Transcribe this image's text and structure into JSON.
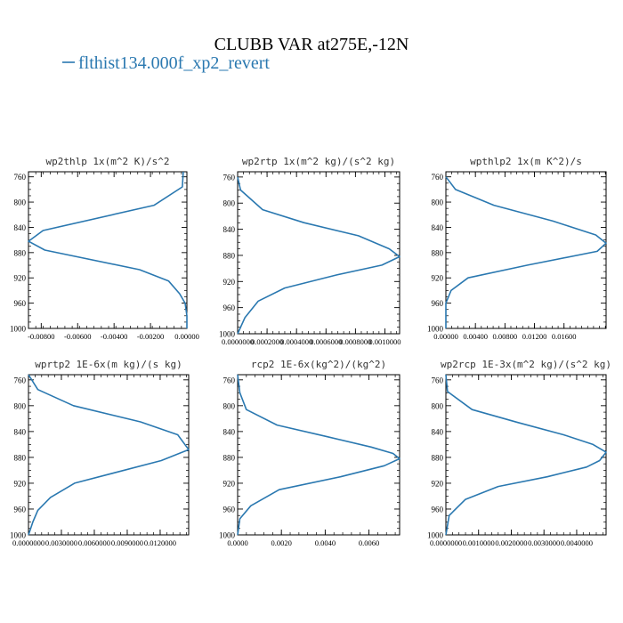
{
  "figure": {
    "title": "CLUBB VAR at275E,-12N",
    "legend_label": "flthist134.000f_xp2_revert",
    "series_color": "#2a78b0"
  },
  "chart_data": [
    {
      "type": "line",
      "title": "wp2thlp  1x(m^2 K)/s^2",
      "xlim": [
        -0.0087,
        0.0
      ],
      "ylim": [
        1000,
        752
      ],
      "y_ticks": [
        760,
        800,
        840,
        880,
        920,
        960,
        1000
      ],
      "x_ticks": [
        -0.008,
        -0.006,
        -0.004,
        -0.002,
        0.0
      ],
      "x_tick_labels": [
        "-0.00800",
        "-0.00600",
        "-0.00400",
        "-0.00200",
        "0.00000"
      ],
      "x": [
        -0.0002,
        -0.00025,
        -0.0018,
        -0.0079,
        -0.0087,
        -0.0078,
        -0.0026,
        -0.001,
        -0.0004,
        -0.0001,
        0.0,
        0.0
      ],
      "y": [
        752,
        776,
        805,
        845,
        862,
        876,
        907,
        925,
        945,
        960,
        980,
        1000
      ]
    },
    {
      "type": "line",
      "title": "wp2rtp  1x(m^2 kg)/(s^2 kg)",
      "xlim": [
        0.0,
        0.0011
      ],
      "ylim": [
        1000,
        752
      ],
      "y_ticks": [
        760,
        800,
        840,
        880,
        920,
        960,
        1000
      ],
      "x_ticks": [
        0.0,
        0.0002,
        0.0004,
        0.0006,
        0.0008,
        0.001
      ],
      "x_tick_labels": [
        "0.0000000",
        "0.0002000",
        "0.0004000",
        "0.0006000",
        "0.0008000",
        "0.0010000"
      ],
      "x": [
        0.0,
        2e-05,
        0.00017,
        0.00045,
        0.00082,
        0.00103,
        0.0011,
        0.00098,
        0.00067,
        0.00032,
        0.00014,
        5e-05,
        0.0
      ],
      "y": [
        760,
        780,
        810,
        830,
        850,
        870,
        882,
        895,
        910,
        930,
        950,
        975,
        1000
      ]
    },
    {
      "type": "line",
      "title": "wpthlp2  1x(m K^2)/s",
      "xlim": [
        0.0,
        0.0217
      ],
      "ylim": [
        1000,
        752
      ],
      "y_ticks": [
        760,
        800,
        840,
        880,
        920,
        960,
        1000
      ],
      "x_ticks": [
        0.0,
        0.004,
        0.008,
        0.012,
        0.016
      ],
      "x_tick_labels": [
        "0.00000",
        "0.00400",
        "0.00800",
        "0.01200",
        "0.01600"
      ],
      "x": [
        0.0,
        0.0013,
        0.0065,
        0.0145,
        0.0203,
        0.0217,
        0.0205,
        0.011,
        0.003,
        0.0007,
        0.0,
        0.0
      ],
      "y": [
        760,
        780,
        805,
        830,
        852,
        865,
        878,
        900,
        920,
        940,
        960,
        1000
      ]
    },
    {
      "type": "line",
      "title": "wprtp2  1E-6x(m kg)/(s kg)",
      "xlim": [
        0.0,
        0.0146
      ],
      "ylim": [
        1000,
        752
      ],
      "y_ticks": [
        760,
        800,
        840,
        880,
        920,
        960,
        1000
      ],
      "x_ticks": [
        0.0,
        0.003,
        0.006,
        0.009,
        0.012
      ],
      "x_tick_labels": [
        "0.0000000",
        "0.0030000",
        "0.0060000",
        "0.0090000",
        "0.0120000"
      ],
      "x": [
        0.0,
        0.00085,
        0.0041,
        0.0102,
        0.0136,
        0.0146,
        0.0121,
        0.0042,
        0.002,
        0.00085,
        0.0004,
        0.0002,
        0.0
      ],
      "y": [
        752,
        775,
        800,
        825,
        845,
        868,
        885,
        920,
        942,
        962,
        980,
        990,
        1000
      ]
    },
    {
      "type": "line",
      "title": "rcp2  1E-6x(kg^2)/(kg^2)",
      "xlim": [
        0.0,
        0.0074
      ],
      "ylim": [
        1000,
        752
      ],
      "y_ticks": [
        760,
        800,
        840,
        880,
        920,
        960,
        1000
      ],
      "x_ticks": [
        0.0,
        0.002,
        0.004,
        0.006
      ],
      "x_tick_labels": [
        "0.0000",
        "0.0020",
        "0.0040",
        "0.0060"
      ],
      "x": [
        0.0,
        0.0001,
        0.0004,
        0.0018,
        0.0041,
        0.0061,
        0.0071,
        0.0074,
        0.0067,
        0.0047,
        0.0019,
        0.0006,
        0.0001,
        0.0
      ],
      "y": [
        752,
        780,
        806,
        830,
        848,
        864,
        874,
        882,
        893,
        910,
        930,
        955,
        975,
        1000
      ]
    },
    {
      "type": "line",
      "title": "wp2rcp  1E-3x(m^2 kg)/(s^2 kg)",
      "xlim": [
        0.0,
        0.0049
      ],
      "ylim": [
        1000,
        752
      ],
      "y_ticks": [
        760,
        800,
        840,
        880,
        920,
        960,
        1000
      ],
      "x_ticks": [
        0.0,
        0.001,
        0.002,
        0.003,
        0.004
      ],
      "x_tick_labels": [
        "0.0000000",
        "0.0010000",
        "0.0020000",
        "0.0030000",
        "0.0040000"
      ],
      "x": [
        0.0,
        5e-05,
        0.0008,
        0.0022,
        0.0036,
        0.0045,
        0.0049,
        0.0047,
        0.0043,
        0.0031,
        0.0016,
        0.0006,
        0.0001,
        0.0
      ],
      "y": [
        752,
        778,
        806,
        826,
        845,
        860,
        872,
        885,
        895,
        910,
        925,
        945,
        970,
        1000
      ]
    }
  ]
}
